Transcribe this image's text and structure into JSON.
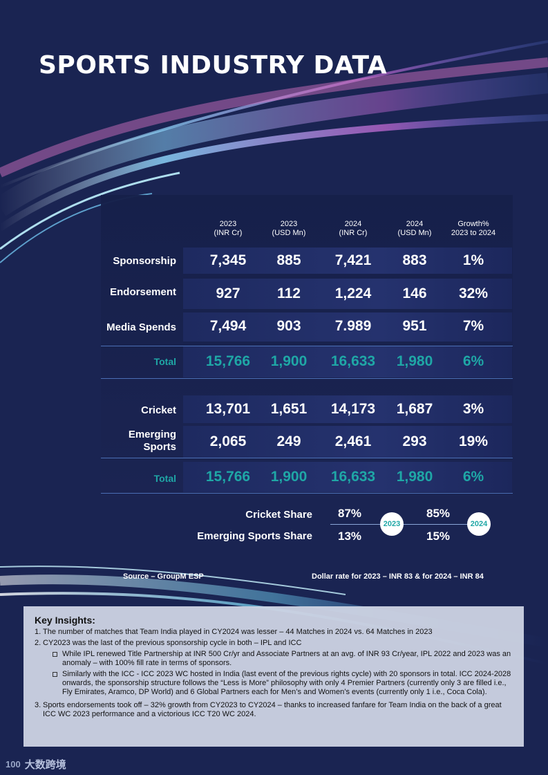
{
  "title": "SPORTS INDUSTRY DATA",
  "table": {
    "columns": [
      {
        "line1": "2023",
        "line2": "(INR Cr)"
      },
      {
        "line1": "2023",
        "line2": "(USD Mn)"
      },
      {
        "line1": "2024",
        "line2": "(INR Cr)"
      },
      {
        "line1": "2024",
        "line2": "(USD Mn)"
      },
      {
        "line1": "Growth%",
        "line2": "2023 to 2024"
      }
    ],
    "section1": [
      {
        "label": "Sponsorship",
        "values": [
          "7,345",
          "885",
          "7,421",
          "883",
          "1%"
        ]
      },
      {
        "label": "Endorsement",
        "values": [
          "927",
          "112",
          "1,224",
          "146",
          "32%"
        ]
      },
      {
        "label": "Media Spends",
        "values": [
          "7,494",
          "903",
          "7.989",
          "951",
          "7%"
        ]
      }
    ],
    "total1": {
      "label": "Total",
      "values": [
        "15,766",
        "1,900",
        "16,633",
        "1,980",
        "6%"
      ]
    },
    "section2": [
      {
        "label": "Cricket",
        "values": [
          "13,701",
          "1,651",
          "14,173",
          "1,687",
          "3%"
        ]
      },
      {
        "label_line1": "Emerging",
        "label_line2": "Sports",
        "values": [
          "2,065",
          "249",
          "2,461",
          "293",
          "19%"
        ]
      }
    ],
    "total2": {
      "label": "Total",
      "values": [
        "15,766",
        "1,900",
        "16,633",
        "1,980",
        "6%"
      ]
    }
  },
  "shares": {
    "cricket_label": "Cricket Share",
    "emerging_label": "Emerging Sports Share",
    "y2023": {
      "badge": "2023",
      "cricket": "87%",
      "emerging": "13%"
    },
    "y2024": {
      "badge": "2024",
      "cricket": "85%",
      "emerging": "15%"
    }
  },
  "source": "Source – GroupM ESP",
  "dollar_rate": "Dollar rate for 2023 – INR 83 & for 2024 – INR 84",
  "insights": {
    "title": "Key Insights:",
    "item1_num": "1.",
    "item1": "The number of matches that Team India played in CY2024 was lesser – 44 Matches in 2024 vs. 64 Matches in 2023",
    "item2_num": "2.",
    "item2": "CY2023 was the last of the previous sponsorship cycle in both – IPL and ICC",
    "item2_sub1": "While IPL renewed Title Partnership at INR 500 Cr/yr and Associate Partners at an avg. of INR 93 Cr/year, IPL 2022 and 2023 was an anomaly – with 100% fill rate in terms of sponsors.",
    "item2_sub2": "Similarly with the ICC - ICC 2023 WC hosted in India (last event of the previous rights cycle) with 20 sponsors in total. ICC 2024-2028 onwards, the sponsorship structure follows the “Less is More” philosophy with only 4 Premier Partners (currently only 3 are filled i.e., Fly Emirates, Aramco, DP World) and 6 Global Partners each for Men’s and Women’s events (currently only 1 i.e., Coca Cola).",
    "item3_num": "3.",
    "item3": "Sports endorsements took off – 32% growth from CY2023 to CY2024 – thanks to increased fanfare for Team India on the back of a great ICC WC 2023 performance and a victorious ICC T20 WC 2024."
  },
  "watermark": {
    "mark": "100",
    "text": "大数跨境"
  }
}
